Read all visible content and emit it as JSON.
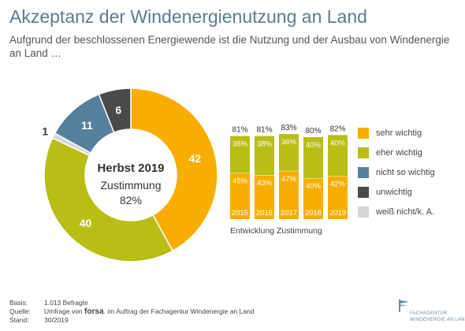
{
  "header": {
    "title": "Akzeptanz der Windenergienutzung an Land",
    "subtitle": "Aufgrund der beschlossenen Energiewende ist die Nutzung und der Ausbau von Windenergie an Land …"
  },
  "chart_data": [
    {
      "type": "pie",
      "center_title": "Herbst 2019",
      "center_label": "Zustimmung",
      "center_value": "82%",
      "categories": [
        "sehr wichtig",
        "eher wichtig",
        "weiß nicht/k. A.",
        "nicht so wichtig",
        "unwichtig"
      ],
      "values": [
        42,
        40,
        1,
        11,
        6
      ],
      "colors": [
        "#f7ae00",
        "#b8be14",
        "#d6d6d6",
        "#577f9e",
        "#4a4a4a"
      ]
    },
    {
      "type": "bar",
      "stacked": true,
      "xlabel": "Entwicklung Zustimmung",
      "categories": [
        "2015",
        "2016",
        "2017",
        "2018",
        "2019"
      ],
      "totals": [
        "81%",
        "81%",
        "83%",
        "80%",
        "82%"
      ],
      "series": [
        {
          "name": "sehr wichtig",
          "values": [
            45,
            43,
            47,
            40,
            42
          ],
          "labels": [
            "45%",
            "43%",
            "47%",
            "40%",
            "42%"
          ],
          "color": "#f7ae00"
        },
        {
          "name": "eher wichtig",
          "values": [
            36,
            38,
            36,
            40,
            40
          ],
          "labels": [
            "36%",
            "38%",
            "36%",
            "40%",
            "40%"
          ],
          "color": "#b8be14"
        }
      ]
    }
  ],
  "legend": [
    {
      "label": "sehr wichtig",
      "color": "#f7ae00"
    },
    {
      "label": "eher wichtig",
      "color": "#b8be14"
    },
    {
      "label": "nicht so wichtig",
      "color": "#577f9e"
    },
    {
      "label": "unwichtig",
      "color": "#4a4a4a"
    },
    {
      "label": "weiß nicht/k. A.",
      "color": "#d6d6d6"
    }
  ],
  "footer": {
    "basis_key": "Basis:",
    "basis_value": "1.013 Befragte",
    "quelle_key": "Quelle:",
    "quelle_pre": "Umfrage von",
    "quelle_brand": "forsa",
    "quelle_post": ". im Auftrag der Fachagentur Windenergie an Land",
    "stand_key": "Stand:",
    "stand_value": "30/2019"
  },
  "logo": {
    "line1": "FACHAGENTUR",
    "line2": "WINDENERGIE AN LAND",
    "icon": "wind-flag-logo-icon"
  }
}
